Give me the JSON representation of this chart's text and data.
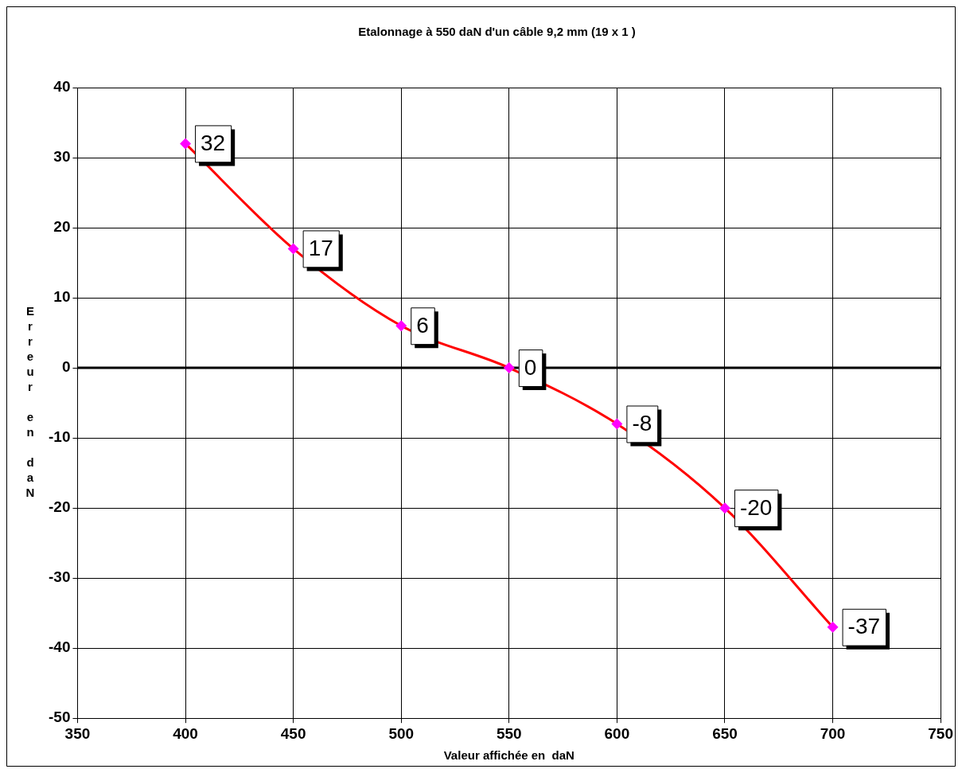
{
  "chart_data": {
    "type": "line",
    "title": "Etalonnage à 550 daN d'un câble 9,2 mm (19 x 1 )",
    "xlabel": "Valeur affichée en  daN",
    "ylabel": "Erreur en daN",
    "x": [
      400,
      450,
      500,
      550,
      600,
      650,
      700
    ],
    "series": [
      {
        "color": "#ff0000",
        "values": [
          32,
          17,
          6,
          0,
          -8,
          -20,
          -37
        ]
      }
    ],
    "xlim": [
      350,
      750
    ],
    "xticks": [
      350,
      400,
      450,
      500,
      550,
      600,
      650,
      700,
      750
    ],
    "ylim": [
      -50,
      40
    ],
    "yticks": [
      -50,
      -40,
      -30,
      -20,
      -10,
      0,
      10,
      20,
      30,
      40
    ],
    "ref_lines": [
      {
        "axis": "y",
        "value": 0,
        "color": "#000000"
      }
    ],
    "grid": true,
    "legend": false,
    "marker": "diamond",
    "line_style": "solid",
    "data_labels": true
  }
}
